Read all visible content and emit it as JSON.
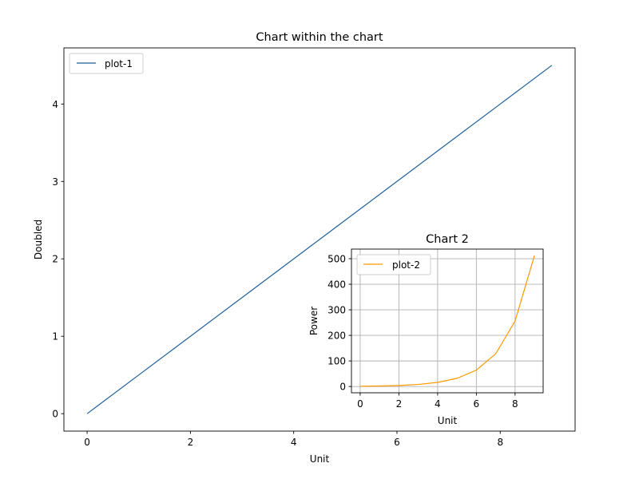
{
  "chart_data": [
    {
      "type": "line",
      "title": "Chart within the chart",
      "xlabel": "Unit",
      "ylabel": "Doubled",
      "xlim": [
        -0.45,
        9.45
      ],
      "ylim": [
        -0.225,
        4.725
      ],
      "xticks": [
        0,
        2,
        4,
        6,
        8
      ],
      "yticks": [
        0,
        1,
        2,
        3,
        4
      ],
      "grid": false,
      "legend_position": "upper-left",
      "series": [
        {
          "name": "plot-1",
          "color": "#1f5f99",
          "x": [
            0,
            1,
            2,
            3,
            4,
            5,
            6,
            7,
            8,
            9
          ],
          "y": [
            0,
            0.5,
            1,
            1.5,
            2,
            2.5,
            3,
            3.5,
            4,
            4.5
          ]
        }
      ]
    },
    {
      "type": "line",
      "title": "Chart 2",
      "xlabel": "Unit",
      "ylabel": "Power",
      "xlim": [
        -0.45,
        9.45
      ],
      "ylim": [
        -24.55,
        537.55
      ],
      "xticks": [
        0,
        2,
        4,
        6,
        8
      ],
      "yticks": [
        0,
        100,
        200,
        300,
        400,
        500
      ],
      "grid": true,
      "legend_position": "upper-left",
      "series": [
        {
          "name": "plot-2",
          "color": "#ff9900",
          "x": [
            0,
            1,
            2,
            3,
            4,
            5,
            6,
            7,
            8,
            9
          ],
          "y": [
            1,
            2,
            4,
            8,
            16,
            32,
            64,
            128,
            256,
            512
          ]
        }
      ]
    }
  ]
}
